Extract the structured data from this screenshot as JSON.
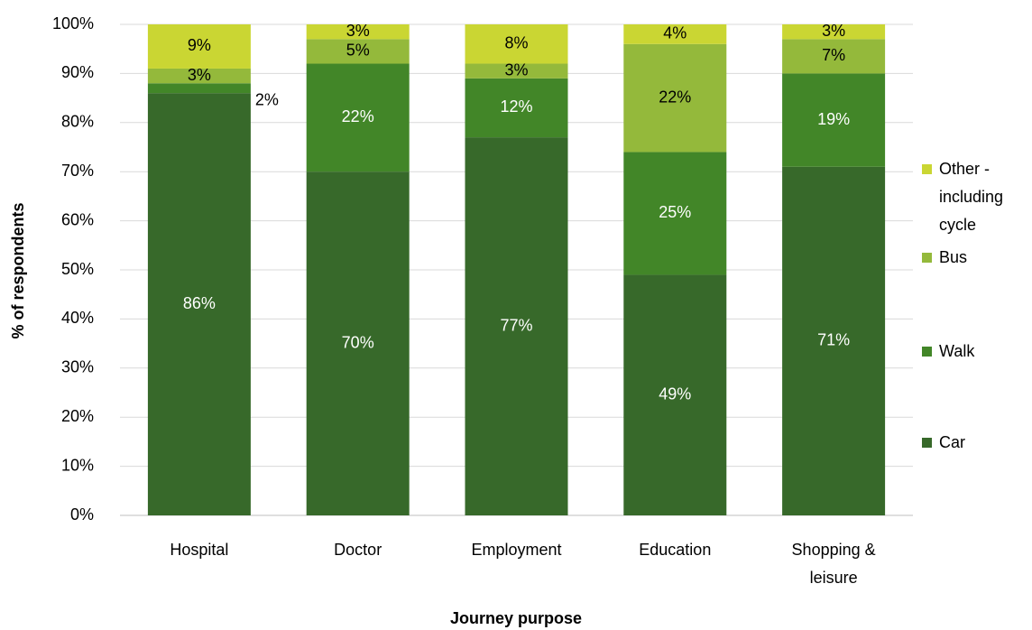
{
  "chart_data": {
    "type": "stacked_bar",
    "x_label": "Journey purpose",
    "y_label": "% of respondents",
    "categories": [
      "Hospital",
      "Doctor",
      "Employment",
      "Education",
      "Shopping & leisure"
    ],
    "series": [
      {
        "name": "Car",
        "color": "#37692a",
        "label_color": "#ffffff",
        "values": [
          86,
          70,
          77,
          49,
          71
        ],
        "value_labels": [
          "86%",
          "70%",
          "77%",
          "49%",
          "71%"
        ]
      },
      {
        "name": "Walk",
        "color": "#428628",
        "label_color": "#ffffff",
        "values": [
          2,
          22,
          12,
          25,
          19
        ],
        "value_labels": [
          "2%",
          "22%",
          "12%",
          "25%",
          "19%"
        ]
      },
      {
        "name": "Bus",
        "color": "#94b93b",
        "label_color": "#000000",
        "values": [
          3,
          5,
          3,
          22,
          7
        ],
        "value_labels": [
          "3%",
          "5%",
          "3%",
          "22%",
          "7%"
        ]
      },
      {
        "name": "Other - including cycle",
        "color": "#cad633",
        "label_color": "#000000",
        "values": [
          9,
          3,
          8,
          4,
          3
        ],
        "value_labels": [
          "9%",
          "3%",
          "8%",
          "4%",
          "3%"
        ]
      }
    ],
    "ylim": [
      0,
      100
    ],
    "yticks": [
      {
        "value": 0,
        "label": "0%"
      },
      {
        "value": 10,
        "label": "10%"
      },
      {
        "value": 20,
        "label": "20%"
      },
      {
        "value": 30,
        "label": "30%"
      },
      {
        "value": 40,
        "label": "40%"
      },
      {
        "value": 50,
        "label": "50%"
      },
      {
        "value": 60,
        "label": "60%"
      },
      {
        "value": 70,
        "label": "70%"
      },
      {
        "value": 80,
        "label": "80%"
      },
      {
        "value": 90,
        "label": "90%"
      },
      {
        "value": 100,
        "label": "100%"
      }
    ],
    "grid": true,
    "legend": "right"
  }
}
